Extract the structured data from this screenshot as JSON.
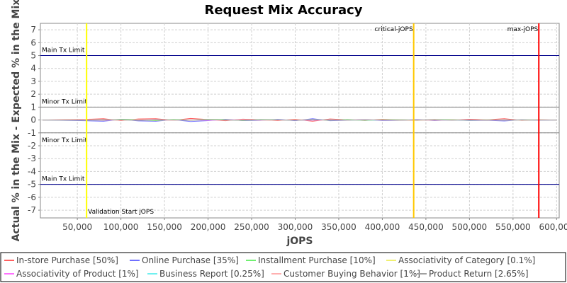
{
  "chart_data": {
    "type": "line",
    "title": "Request Mix Accuracy",
    "xlabel": "jOPS",
    "ylabel": "Actual % in the Mix - Expected % in the Mix",
    "xlim": [
      7600,
      603000
    ],
    "ylim": [
      -7.6,
      7.5
    ],
    "grid": true,
    "legend_placement": "bottom",
    "x_ticks": [
      "50,000",
      "100,000",
      "150,000",
      "200,000",
      "250,000",
      "300,000",
      "350,000",
      "400,000",
      "450,000",
      "500,000",
      "550,000",
      "600,000"
    ],
    "x_tick_values": [
      50000,
      100000,
      150000,
      200000,
      250000,
      300000,
      350000,
      400000,
      450000,
      500000,
      550000,
      600000
    ],
    "y_ticks": [
      7,
      6,
      5,
      4,
      3,
      2,
      1,
      0,
      -1,
      -2,
      -3,
      -4,
      -5,
      -6,
      -7
    ],
    "x": [
      10000,
      60000,
      80000,
      100000,
      120000,
      140000,
      160000,
      180000,
      200000,
      220000,
      240000,
      260000,
      280000,
      300000,
      320000,
      340000,
      360000,
      380000,
      400000,
      420000,
      440000,
      460000,
      480000,
      500000,
      520000,
      540000,
      560000,
      580000,
      600000
    ],
    "series": [
      {
        "name": "In-store Purchase [50%]",
        "color": "#ff6060",
        "values": [
          0,
          0.05,
          0.1,
          -0.05,
          0.08,
          0.1,
          -0.02,
          0.12,
          0.04,
          -0.06,
          0.07,
          0.02,
          -0.05,
          0.06,
          -0.1,
          0.08,
          0.02,
          -0.04,
          0.05,
          0.01,
          -0.03,
          0.04,
          -0.02,
          0.06,
          0.02,
          0.1,
          -0.03,
          0.02,
          0.0
        ]
      },
      {
        "name": "Online Purchase [35%]",
        "color": "#7070ff",
        "values": [
          0,
          -0.06,
          -0.1,
          0.05,
          -0.07,
          -0.1,
          0.03,
          -0.12,
          -0.05,
          0.06,
          -0.05,
          -0.03,
          0.05,
          -0.06,
          0.1,
          -0.06,
          -0.02,
          0.03,
          -0.04,
          -0.02,
          0.03,
          -0.05,
          0.02,
          -0.04,
          -0.02,
          -0.08,
          0.02,
          -0.02,
          0.0
        ]
      },
      {
        "name": "Installment Purchase [10%]",
        "color": "#70f070",
        "values": [
          0,
          0.02,
          -0.04,
          0.06,
          0.03,
          -0.05,
          0.04,
          0.0,
          0.05,
          0.03,
          -0.04,
          0.04,
          0.02,
          -0.02,
          0.03,
          -0.02,
          0.04,
          -0.03,
          0.02,
          0.03,
          -0.01,
          0.02,
          0.03,
          -0.02,
          0.03,
          -0.02,
          0.02,
          0.01,
          0.0
        ]
      },
      {
        "name": "Associativity of Category [0.1%]",
        "color": "#f0f070",
        "values": [
          0,
          0.0,
          0.01,
          0.0,
          -0.01,
          0.0,
          0.01,
          0.0,
          0.0,
          0.01,
          0.0,
          -0.01,
          0.0,
          0.01,
          0.0,
          0.0,
          -0.01,
          0.0,
          0.01,
          0.0,
          0.0,
          0.0,
          0.01,
          0.0,
          0.0,
          -0.01,
          0.0,
          0.0,
          0.0
        ]
      },
      {
        "name": "Associativity of Product [1%]",
        "color": "#ff70ff",
        "values": [
          0,
          0.01,
          -0.02,
          0.02,
          0.0,
          0.02,
          -0.01,
          0.01,
          -0.02,
          0.01,
          0.02,
          -0.01,
          0.01,
          0.0,
          -0.02,
          0.01,
          0.0,
          0.02,
          -0.01,
          0.0,
          0.01,
          -0.01,
          0.0,
          0.01,
          -0.01,
          0.0,
          0.01,
          0.0,
          0.0
        ]
      },
      {
        "name": "Business Report [0.25%]",
        "color": "#70f0f0",
        "values": [
          0,
          0.0,
          0.01,
          -0.01,
          0.0,
          0.01,
          0.0,
          -0.01,
          0.01,
          0.0,
          0.0,
          0.01,
          -0.01,
          0.0,
          0.0,
          0.01,
          0.0,
          -0.01,
          0.0,
          0.01,
          0.0,
          0.0,
          -0.01,
          0.0,
          0.01,
          0.0,
          0.0,
          0.0,
          0.0
        ]
      },
      {
        "name": "Customer Buying Behavior [1%]",
        "color": "#ffb0b0",
        "values": [
          0,
          0.02,
          0.01,
          -0.02,
          0.03,
          0.0,
          -0.02,
          0.02,
          0.01,
          -0.01,
          0.02,
          0.0,
          -0.02,
          0.01,
          0.02,
          -0.01,
          0.0,
          0.02,
          -0.01,
          0.01,
          0.0,
          -0.02,
          0.01,
          0.0,
          0.02,
          -0.01,
          0.0,
          0.01,
          0.0
        ]
      },
      {
        "name": "Product Return [2.65%]",
        "color": "#a0a0a0",
        "values": [
          0,
          -0.02,
          0.03,
          0.01,
          -0.03,
          0.02,
          0.0,
          -0.02,
          0.03,
          0.0,
          -0.02,
          0.02,
          0.01,
          -0.03,
          0.02,
          0.0,
          -0.01,
          0.02,
          0.0,
          -0.02,
          0.01,
          0.02,
          -0.01,
          0.0,
          -0.02,
          0.01,
          0.0,
          -0.01,
          0.0
        ]
      }
    ],
    "h_markers": [
      {
        "label": "Main Tx Limit",
        "value": 5,
        "color": "#00008b",
        "label_pos": "above"
      },
      {
        "label": "Minor Tx Limit",
        "value": 1,
        "color": "#808080",
        "label_pos": "above"
      },
      {
        "label": "Minor Tx Limit",
        "value": -1,
        "color": "#808080",
        "label_pos": "below"
      },
      {
        "label": "Main Tx Limit",
        "value": -5,
        "color": "#00008b",
        "label_pos": "above"
      }
    ],
    "v_markers": [
      {
        "label": "Validation Start jOPS",
        "value": 60600,
        "color": "#ffff00",
        "label_pos": "bottom-right"
      },
      {
        "label": "critical-jOPS",
        "value": 436000,
        "color": "#ffc800",
        "label_pos": "top-left"
      },
      {
        "label": "max-jOPS",
        "value": 579600,
        "color": "#ff0000",
        "label_pos": "top-left"
      }
    ]
  }
}
